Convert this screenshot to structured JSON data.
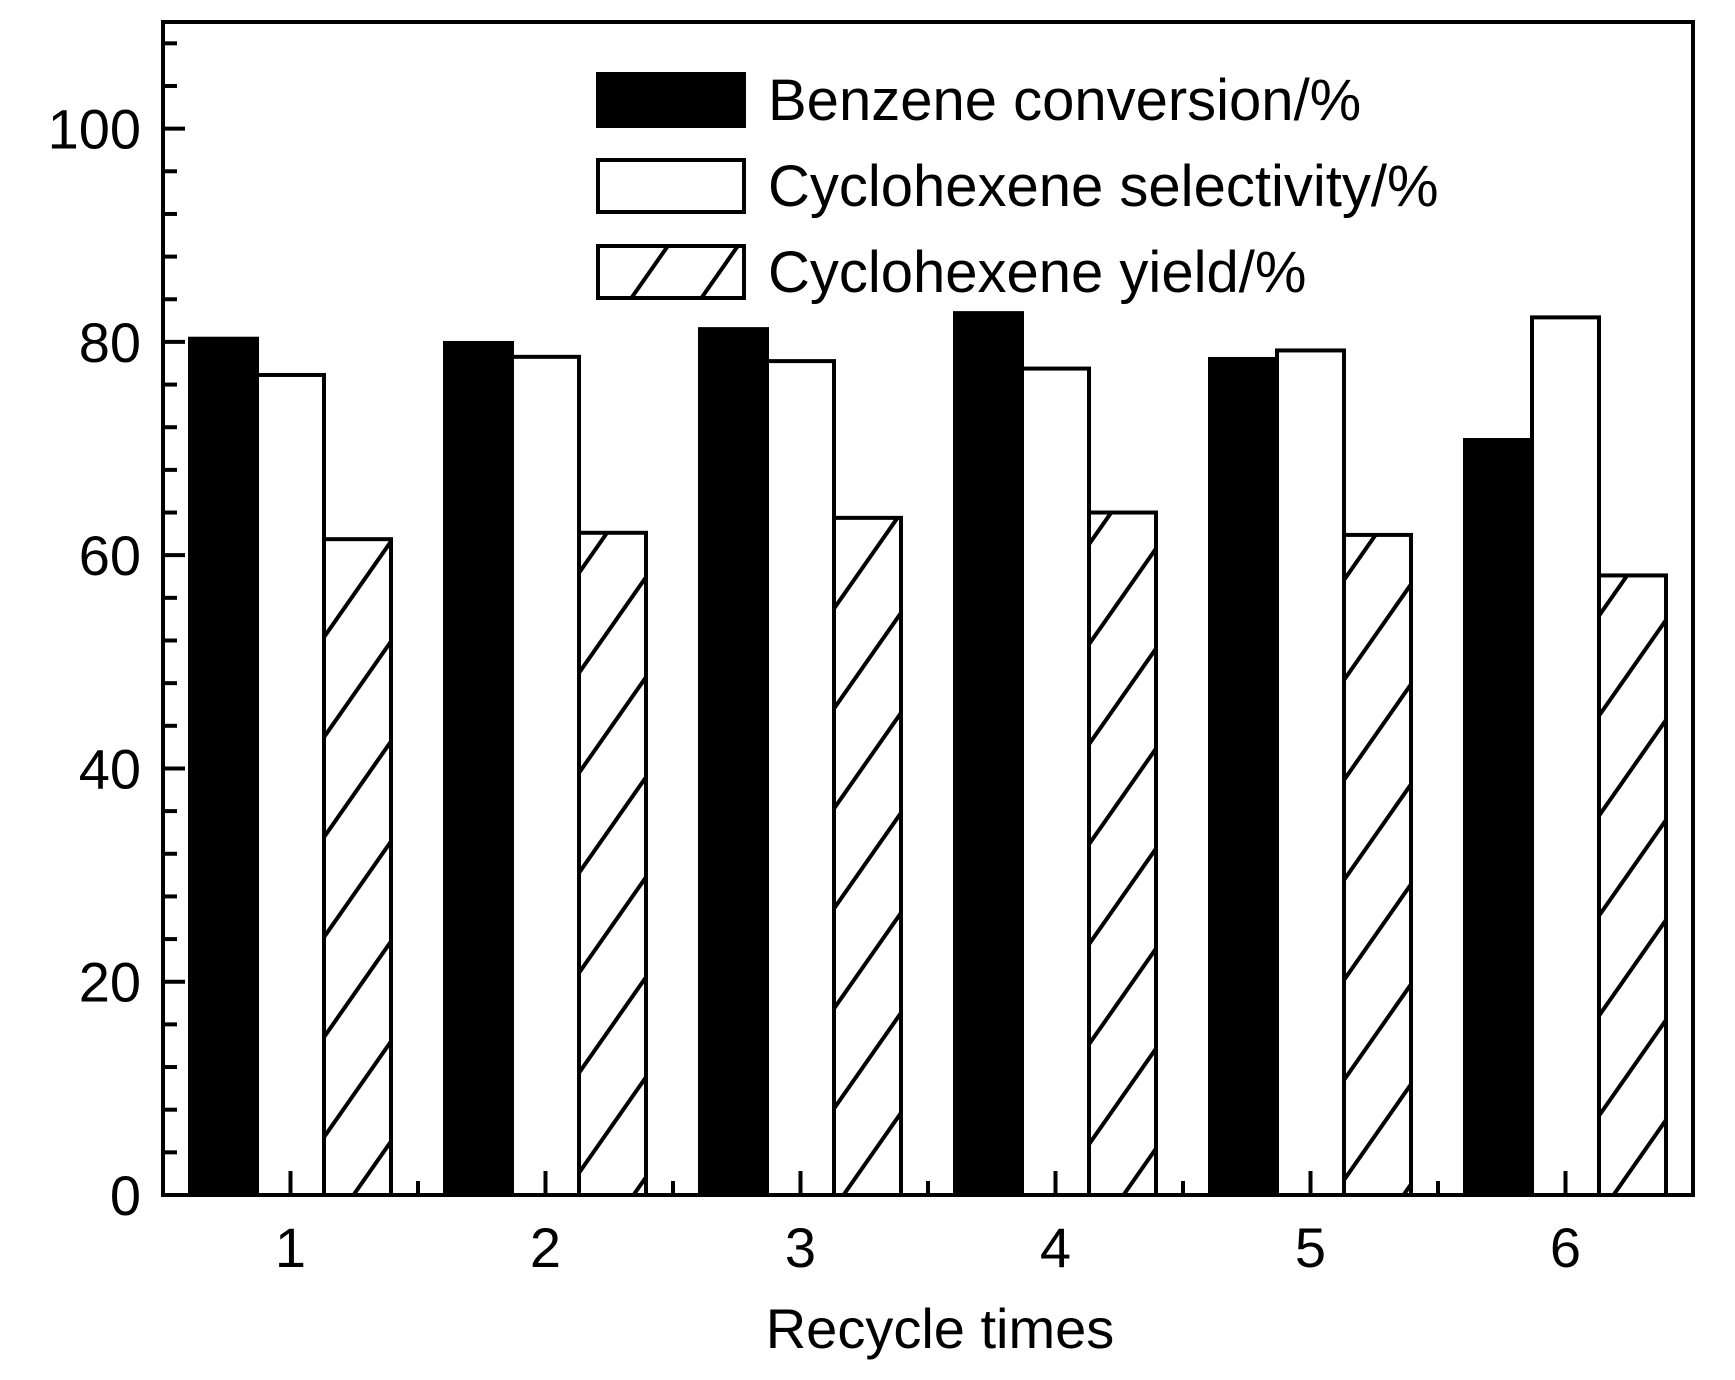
{
  "chart_data": {
    "type": "bar",
    "title": "",
    "xlabel": "Recycle times",
    "ylabel": "",
    "categories": [
      "1",
      "2",
      "3",
      "4",
      "5",
      "6"
    ],
    "ylim": [
      0,
      110
    ],
    "yticks": [
      0,
      20,
      40,
      60,
      80,
      100
    ],
    "y_minor_step": 4,
    "grid": false,
    "legend_position": "top-right",
    "series": [
      {
        "name": "Benzene conversion/%",
        "style": "solid",
        "values": [
          80.3,
          79.9,
          81.2,
          82.7,
          78.4,
          70.8
        ]
      },
      {
        "name": "Cyclohexene selectivity/%",
        "style": "open",
        "values": [
          76.9,
          78.6,
          78.2,
          77.5,
          79.2,
          82.3
        ]
      },
      {
        "name": "Cyclohexene yield/%",
        "style": "hatched",
        "values": [
          61.5,
          62.1,
          63.5,
          64.0,
          61.9,
          58.1
        ]
      }
    ],
    "colors": {
      "solid": "#000000",
      "open": "#ffffff",
      "stroke": "#000000"
    }
  }
}
